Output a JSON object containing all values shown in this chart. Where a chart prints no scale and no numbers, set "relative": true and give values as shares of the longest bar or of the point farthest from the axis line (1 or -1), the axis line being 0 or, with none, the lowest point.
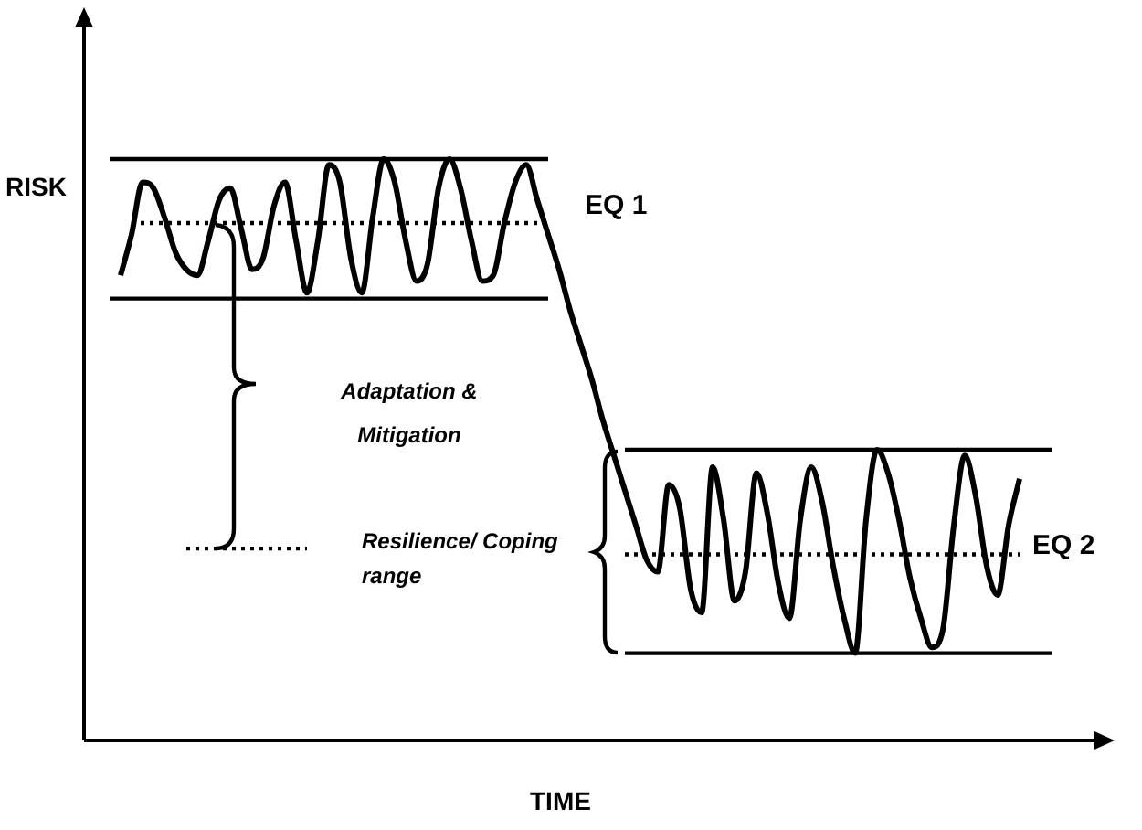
{
  "chart_data": {
    "type": "line",
    "relative": true,
    "xlabel": "TIME",
    "ylabel": "RISK",
    "legend": false,
    "marker": "none",
    "annotations": [
      "EQ 1",
      "EQ 2",
      "Adaptation & Mitigation",
      "Resilience/ Coping range"
    ],
    "categories": [
      null,
      null,
      null,
      null,
      null,
      null,
      null,
      null,
      null,
      null,
      null,
      null,
      null,
      null,
      null,
      null,
      null,
      null,
      null,
      null,
      null,
      null,
      null,
      null,
      null,
      null,
      null,
      null,
      null,
      null,
      null,
      null,
      null,
      null,
      null,
      null,
      null,
      null,
      null,
      null,
      null,
      null,
      null,
      null,
      null,
      null,
      null,
      null,
      null,
      null,
      null,
      null,
      null,
      null,
      null,
      null,
      null,
      null,
      null,
      null,
      null,
      null,
      null,
      null,
      null,
      null,
      null,
      null,
      null,
      null,
      null,
      null,
      null,
      null,
      null,
      null,
      null,
      null,
      null,
      null,
      null,
      null,
      null,
      null,
      null,
      null,
      null,
      null
    ],
    "series": [
      {
        "color": "#000000",
        "line_style": "solid",
        "values": [
          null,
          null,
          0.8,
          0.87,
          0.96,
          0.95,
          0.9,
          0.84,
          0.81,
          0.8,
          0.86,
          0.93,
          0.95,
          0.88,
          0.81,
          0.83,
          0.92,
          0.96,
          0.86,
          0.77,
          0.86,
          0.99,
          0.96,
          0.83,
          0.77,
          0.9,
          1.0,
          0.96,
          0.86,
          0.79,
          0.82,
          0.95,
          1.0,
          0.95,
          0.86,
          0.79,
          0.8,
          0.89,
          0.96,
          0.99,
          0.93,
          0.87,
          0.81,
          0.74,
          0.68,
          0.62,
          0.55,
          0.49,
          0.43,
          0.37,
          0.31,
          0.29,
          0.44,
          0.4,
          0.26,
          0.22,
          0.47,
          0.38,
          0.24,
          0.29,
          0.46,
          0.39,
          0.27,
          0.21,
          0.38,
          0.47,
          0.41,
          0.3,
          0.21,
          0.15,
          0.38,
          0.5,
          0.46,
          0.38,
          0.28,
          0.21,
          0.16,
          0.19,
          0.37,
          0.49,
          0.42,
          0.3,
          0.25,
          0.37,
          0.45,
          null,
          null,
          null
        ]
      },
      {
        "color": "#000000",
        "line_style": "solid",
        "values": [
          null,
          1,
          1,
          1,
          1,
          1,
          1,
          1,
          1,
          1,
          1,
          1,
          1,
          1,
          1,
          1,
          1,
          1,
          1,
          1,
          1,
          1,
          1,
          1,
          1,
          1,
          1,
          1,
          1,
          1,
          1,
          1,
          1,
          1,
          1,
          1,
          1,
          1,
          1,
          1,
          1,
          1,
          null,
          null,
          null,
          null,
          null,
          null,
          null,
          null,
          null,
          null,
          null,
          null,
          null,
          null,
          null,
          null,
          null,
          null,
          null,
          null,
          null,
          null,
          null,
          null,
          null,
          null,
          null,
          null,
          null,
          null,
          null,
          null,
          null,
          null,
          null,
          null,
          null,
          null,
          null,
          null,
          null,
          null,
          null,
          null,
          null,
          null
        ]
      },
      {
        "color": "#000000",
        "line_style": "solid",
        "values": [
          null,
          0.76,
          0.76,
          0.76,
          0.76,
          0.76,
          0.76,
          0.76,
          0.76,
          0.76,
          0.76,
          0.76,
          0.76,
          0.76,
          0.76,
          0.76,
          0.76,
          0.76,
          0.76,
          0.76,
          0.76,
          0.76,
          0.76,
          0.76,
          0.76,
          0.76,
          0.76,
          0.76,
          0.76,
          0.76,
          0.76,
          0.76,
          0.76,
          0.76,
          0.76,
          0.76,
          0.76,
          0.76,
          0.76,
          0.76,
          0.76,
          0.76,
          null,
          null,
          null,
          null,
          null,
          null,
          null,
          null,
          null,
          null,
          null,
          null,
          null,
          null,
          null,
          null,
          null,
          null,
          null,
          null,
          null,
          null,
          null,
          null,
          null,
          null,
          null,
          null,
          null,
          null,
          null,
          null,
          null,
          null,
          null,
          null,
          null,
          null,
          null,
          null,
          null,
          null,
          null,
          null,
          null,
          null
        ]
      },
      {
        "color": "#000000",
        "line_style": "dotted",
        "values": [
          null,
          null,
          null,
          0.89,
          0.89,
          0.89,
          0.89,
          0.89,
          0.89,
          0.89,
          0.89,
          0.89,
          0.89,
          0.89,
          0.89,
          0.89,
          0.89,
          0.89,
          0.89,
          0.89,
          0.89,
          0.89,
          0.89,
          0.89,
          0.89,
          0.89,
          0.89,
          0.89,
          0.89,
          0.89,
          0.89,
          0.89,
          0.89,
          0.89,
          0.89,
          0.89,
          0.89,
          0.89,
          0.89,
          0.89,
          0.89,
          0.89,
          null,
          null,
          null,
          null,
          null,
          null,
          null,
          null,
          null,
          null,
          null,
          null,
          null,
          null,
          null,
          null,
          null,
          null,
          null,
          null,
          null,
          null,
          null,
          null,
          null,
          null,
          null,
          null,
          null,
          null,
          null,
          null,
          null,
          null,
          null,
          null,
          null,
          null,
          null,
          null,
          null,
          null,
          null,
          null,
          null,
          null
        ]
      },
      {
        "color": "#000000",
        "line_style": "solid",
        "values": [
          null,
          null,
          null,
          null,
          null,
          null,
          null,
          null,
          null,
          null,
          null,
          null,
          null,
          null,
          null,
          null,
          null,
          null,
          null,
          null,
          null,
          null,
          null,
          null,
          null,
          null,
          null,
          null,
          null,
          null,
          null,
          null,
          null,
          null,
          null,
          null,
          null,
          null,
          null,
          null,
          null,
          null,
          null,
          null,
          null,
          null,
          null,
          null,
          0.5,
          0.5,
          0.5,
          0.5,
          0.5,
          0.5,
          0.5,
          0.5,
          0.5,
          0.5,
          0.5,
          0.5,
          0.5,
          0.5,
          0.5,
          0.5,
          0.5,
          0.5,
          0.5,
          0.5,
          0.5,
          0.5,
          0.5,
          0.5,
          0.5,
          0.5,
          0.5,
          0.5,
          0.5,
          0.5,
          0.5,
          0.5,
          0.5,
          0.5,
          0.5,
          0.5,
          0.5,
          0.5,
          0.5,
          0.5
        ]
      },
      {
        "color": "#000000",
        "line_style": "solid",
        "values": [
          null,
          null,
          null,
          null,
          null,
          null,
          null,
          null,
          null,
          null,
          null,
          null,
          null,
          null,
          null,
          null,
          null,
          null,
          null,
          null,
          null,
          null,
          null,
          null,
          null,
          null,
          null,
          null,
          null,
          null,
          null,
          null,
          null,
          null,
          null,
          null,
          null,
          null,
          null,
          null,
          null,
          null,
          null,
          null,
          null,
          null,
          null,
          null,
          0.15,
          0.15,
          0.15,
          0.15,
          0.15,
          0.15,
          0.15,
          0.15,
          0.15,
          0.15,
          0.15,
          0.15,
          0.15,
          0.15,
          0.15,
          0.15,
          0.15,
          0.15,
          0.15,
          0.15,
          0.15,
          0.15,
          0.15,
          0.15,
          0.15,
          0.15,
          0.15,
          0.15,
          0.15,
          0.15,
          0.15,
          0.15,
          0.15,
          0.15,
          0.15,
          0.15,
          0.15,
          0.15,
          0.15,
          0.15
        ]
      },
      {
        "color": "#000000",
        "line_style": "dotted",
        "values": [
          null,
          null,
          null,
          null,
          null,
          null,
          null,
          null,
          null,
          null,
          null,
          null,
          null,
          null,
          null,
          null,
          null,
          null,
          null,
          null,
          null,
          null,
          null,
          null,
          null,
          null,
          null,
          null,
          null,
          null,
          null,
          null,
          null,
          null,
          null,
          null,
          null,
          null,
          null,
          null,
          null,
          null,
          null,
          null,
          null,
          null,
          null,
          null,
          0.32,
          0.32,
          0.32,
          0.32,
          0.32,
          0.32,
          0.32,
          0.32,
          0.32,
          0.32,
          0.32,
          0.32,
          0.32,
          0.32,
          0.32,
          0.32,
          0.32,
          0.32,
          0.32,
          0.32,
          0.32,
          0.32,
          0.32,
          0.32,
          0.32,
          0.32,
          0.32,
          0.32,
          0.32,
          0.32,
          0.32,
          0.32,
          0.32,
          0.32,
          0.32,
          0.32,
          0.32,
          null,
          null,
          null
        ]
      },
      {
        "color": "#000000",
        "line_style": "dotted",
        "values": [
          null,
          null,
          null,
          null,
          null,
          null,
          null,
          null,
          0.33,
          0.33,
          0.33,
          0.33,
          0.33,
          0.33,
          0.33,
          0.33,
          0.33,
          0.33,
          0.33,
          0.33,
          null,
          null,
          null,
          null,
          null,
          null,
          null,
          null,
          null,
          null,
          null,
          null,
          null,
          null,
          null,
          null,
          null,
          null,
          null,
          null,
          null,
          null,
          null,
          null,
          null,
          null,
          null,
          null,
          null,
          null,
          null,
          null,
          null,
          null,
          null,
          null,
          null,
          null,
          null,
          null,
          null,
          null,
          null,
          null,
          null,
          null,
          null,
          null,
          null,
          null,
          null,
          null,
          null,
          null,
          null,
          null,
          null,
          null,
          null,
          null,
          null,
          null,
          null,
          null,
          null,
          null,
          null,
          null
        ]
      }
    ]
  }
}
